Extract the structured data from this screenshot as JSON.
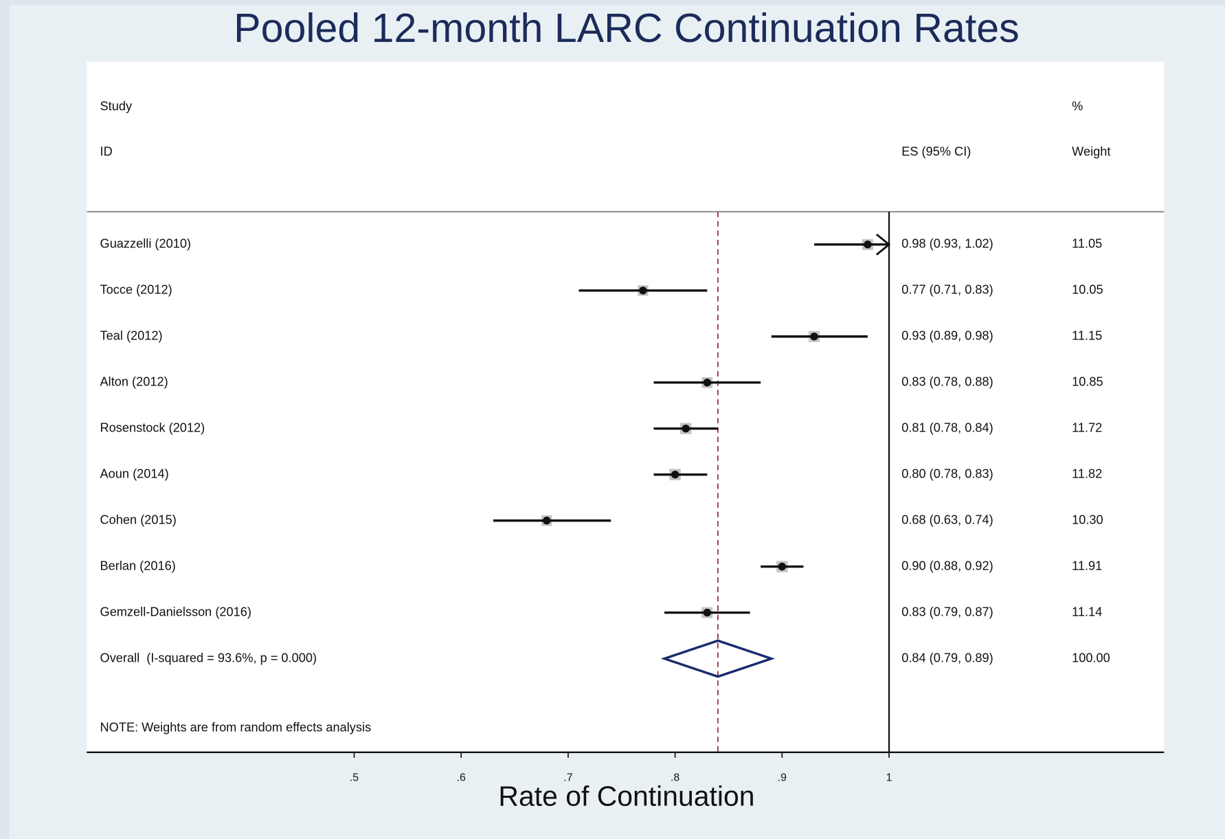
{
  "chart_data": {
    "type": "forest",
    "title": "Pooled 12-month LARC Continuation Rates",
    "x_label": "Rate of Continuation",
    "headers": {
      "study": "Study",
      "id": "ID",
      "es": "ES (95% CI)",
      "pct": "%",
      "weight": "Weight"
    },
    "studies": [
      "Guazzelli (2010)",
      "Tocce (2012)",
      "Teal (2012)",
      "Alton (2012)",
      "Rosenstock (2012)",
      "Aoun (2014)",
      "Cohen (2015)",
      "Berlan (2016)",
      "Gemzell-Danielsson (2016)"
    ],
    "es": [
      0.98,
      0.77,
      0.93,
      0.83,
      0.81,
      0.8,
      0.68,
      0.9,
      0.83
    ],
    "lo": [
      0.93,
      0.71,
      0.89,
      0.78,
      0.78,
      0.78,
      0.63,
      0.88,
      0.79
    ],
    "hi": [
      1.02,
      0.83,
      0.98,
      0.88,
      0.84,
      0.83,
      0.74,
      0.92,
      0.87
    ],
    "es_labels": [
      "0.98 (0.93, 1.02)",
      "0.77 (0.71, 0.83)",
      "0.93 (0.89, 0.98)",
      "0.83 (0.78, 0.88)",
      "0.81 (0.78, 0.84)",
      "0.80 (0.78, 0.83)",
      "0.68 (0.63, 0.74)",
      "0.90 (0.88, 0.92)",
      "0.83 (0.79, 0.87)"
    ],
    "weights": [
      11.05,
      10.05,
      11.15,
      10.85,
      11.72,
      11.82,
      10.3,
      11.91,
      11.14
    ],
    "weight_labels": [
      "11.05",
      "10.05",
      "11.15",
      "10.85",
      "11.72",
      "11.82",
      "10.30",
      "11.91",
      "11.14"
    ],
    "overall": {
      "label": "Overall  (I-squared = 93.6%, p = 0.000)",
      "es": 0.84,
      "lo": 0.79,
      "hi": 0.89,
      "es_label": "0.84 (0.79, 0.89)",
      "weight_label": "100.00"
    },
    "note": "NOTE: Weights are from random effects analysis",
    "xlim": [
      0.25,
      1
    ],
    "xticks": [
      {
        "value": 0.5,
        "label": ".5"
      },
      {
        "value": 0.6,
        "label": ".6"
      },
      {
        "value": 0.7,
        "label": ".7"
      },
      {
        "value": 0.8,
        "label": ".8"
      },
      {
        "value": 0.9,
        "label": ".9"
      },
      1
    ],
    "null_line": 1,
    "diamond_color": "#1a2a6c",
    "title_color": "#1c2b5a"
  }
}
